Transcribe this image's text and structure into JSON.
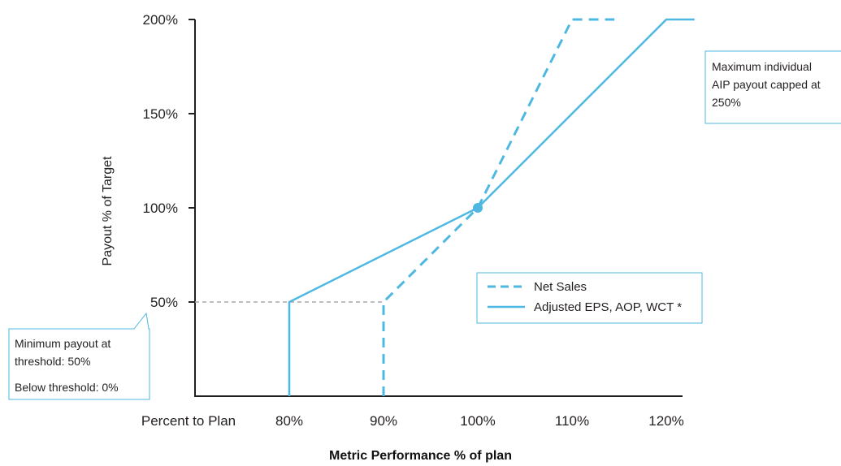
{
  "chart_data": {
    "type": "line",
    "xlabel": "Metric Performance % of plan",
    "x_axis_prefix": "Percent to Plan",
    "ylabel": "Payout % of Target",
    "x_ticks": [
      "80%",
      "90%",
      "100%",
      "110%",
      "120%"
    ],
    "y_ticks": [
      "50%",
      "100%",
      "150%",
      "200%"
    ],
    "xlim": [
      70,
      123
    ],
    "ylim": [
      0,
      200
    ],
    "series": [
      {
        "name": "Net Sales",
        "style": "dashed",
        "x": [
          90,
          90,
          100,
          110,
          114.5
        ],
        "y": [
          0,
          50,
          100,
          200,
          200
        ]
      },
      {
        "name": "Adjusted EPS, AOP, WCT *",
        "style": "solid",
        "x": [
          80,
          80,
          100,
          120,
          123
        ],
        "y": [
          0,
          50,
          100,
          200,
          200
        ]
      }
    ],
    "target_point": {
      "x": 100,
      "y": 100
    },
    "threshold_guide": {
      "x_from": 70,
      "x_to": 90,
      "y": 50
    },
    "colors": {
      "line": "#4fb8e2",
      "guide": "#a8a8a8",
      "axis": "#231f20"
    },
    "legend_position": "center-right",
    "annotations": {
      "minimum": [
        "Minimum payout at",
        "threshold: 50%",
        "Below threshold: 0%"
      ],
      "maximum": [
        "Maximum individual",
        "AIP payout capped at",
        "250%"
      ]
    }
  }
}
